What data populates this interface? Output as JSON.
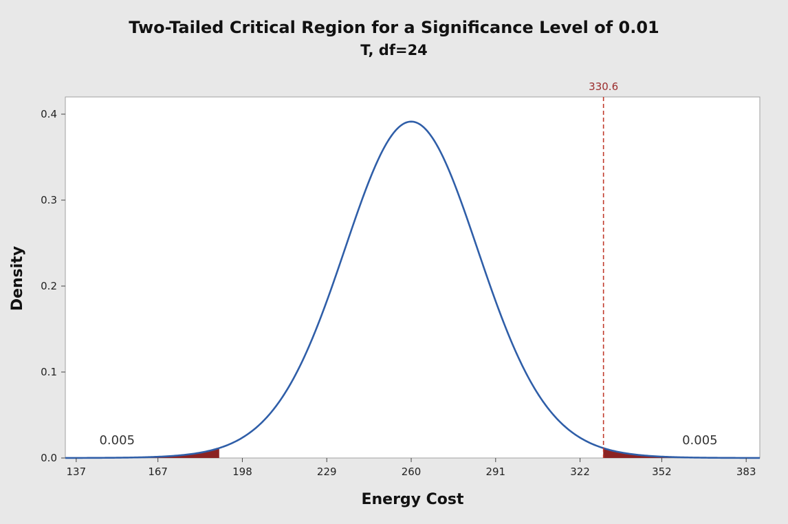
{
  "chart_data": {
    "type": "area",
    "title": "Two-Tailed Critical Region for a Significance Level of 0.01",
    "subtitle": "T, df=24",
    "xlabel": "Energy Cost",
    "ylabel": "Density",
    "distribution": {
      "name": "T",
      "df": 24,
      "location": 260,
      "scale": 25.22
    },
    "xlim": [
      133,
      388
    ],
    "ylim": [
      0,
      0.42
    ],
    "x_ticks": [
      137,
      167,
      198,
      229,
      260,
      291,
      322,
      352,
      383
    ],
    "x_tick_labels": [
      "137",
      "167",
      "198",
      "229",
      "260",
      "291",
      "322",
      "352",
      "383"
    ],
    "y_ticks": [
      0.0,
      0.1,
      0.2,
      0.3,
      0.4
    ],
    "y_tick_labels": [
      "0.0",
      "0.1",
      "0.2",
      "0.3",
      "0.4"
    ],
    "critical_regions": [
      {
        "name": "lower-tail",
        "from": 133,
        "to": 189.5,
        "area_label": "0.005",
        "label_x": 152
      },
      {
        "name": "upper-tail",
        "from": 330.5,
        "to": 388,
        "area_label": "0.005",
        "label_x": 366
      }
    ],
    "reference_line": {
      "x": 330.6,
      "label": "330.6",
      "style": "dashed"
    },
    "colors": {
      "curve": "#2f5ea8",
      "region": "#8b2323",
      "reference": "#c0392b",
      "reference_label": "#9b2c2c",
      "background": "#e8e8e8",
      "plot_background": "#ffffff"
    }
  }
}
